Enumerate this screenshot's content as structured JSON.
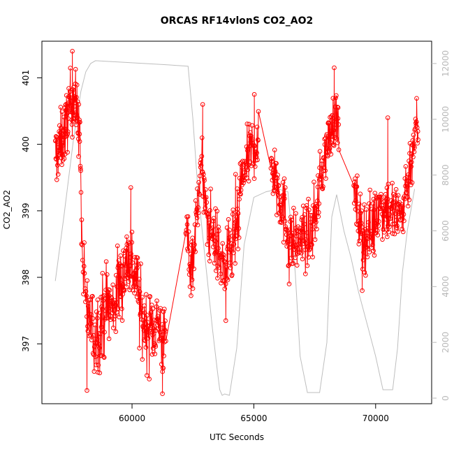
{
  "chart_data": {
    "type": "line",
    "title": "ORCAS RF14vlonS CO2_AO2",
    "xlabel": "UTC Seconds",
    "ylabel": "CO2_AO2",
    "xlim": [
      56300,
      72300
    ],
    "ylim": [
      396.1,
      401.55
    ],
    "x_ticks": [
      60000,
      65000,
      70000
    ],
    "y_ticks": [
      397,
      398,
      399,
      400,
      401
    ],
    "y2_ticks": [
      0,
      2000,
      4000,
      6000,
      8000,
      10000,
      12000
    ],
    "y2lim": [
      -200,
      12800
    ],
    "colors": {
      "primary": "#ff0000",
      "secondary": "#bebebe"
    },
    "grid": false,
    "series": [
      {
        "axis": "right",
        "style": "line",
        "color": "#bebebe",
        "x": [
          56850,
          57200,
          57600,
          57900,
          58100,
          58300,
          58500,
          59500,
          60500,
          61500,
          62300,
          62500,
          62700,
          63000,
          63300,
          63500,
          63600,
          63700,
          63800,
          64000,
          64300,
          64600,
          65000,
          65500,
          66000,
          66400,
          66700,
          66900,
          67200,
          67400,
          67700,
          68000,
          68200,
          68400,
          68700,
          69000,
          69300,
          69700,
          70000,
          70300,
          70500,
          70700,
          70900,
          71100,
          71300,
          71600
        ],
        "y": [
          4200,
          6500,
          9300,
          11000,
          11700,
          12000,
          12100,
          12050,
          12000,
          11950,
          11900,
          10000,
          7500,
          5000,
          2500,
          1000,
          300,
          100,
          150,
          100,
          1800,
          5500,
          7200,
          7400,
          7500,
          7400,
          4500,
          1500,
          200,
          200,
          200,
          2000,
          6500,
          7300,
          6000,
          5000,
          3800,
          2500,
          1500,
          300,
          300,
          300,
          1800,
          4500,
          6000,
          7500
        ]
      },
      {
        "axis": "left",
        "style": "line+points",
        "color": "#ff0000",
        "segments": [
          {
            "x_range": [
              56850,
              57900
            ],
            "anchors": [
              [
                56850,
                399.8
              ],
              [
                57050,
                400.0
              ],
              [
                57250,
                400.2
              ],
              [
                57450,
                400.6
              ],
              [
                57650,
                400.7
              ],
              [
                57850,
                400.2
              ],
              [
                57900,
                399.4
              ]
            ],
            "noise": 0.45,
            "n": 110
          },
          {
            "x_range": [
              57900,
              58400
            ],
            "anchors": [
              [
                57900,
                399.1
              ],
              [
                58000,
                398.0
              ],
              [
                58100,
                397.6
              ],
              [
                58250,
                397.4
              ],
              [
                58400,
                397.2
              ]
            ],
            "noise": 0.55,
            "n": 30
          },
          {
            "x_range": [
              58400,
              59600
            ],
            "anchors": [
              [
                58400,
                397.1
              ],
              [
                58700,
                397.3
              ],
              [
                58950,
                397.6
              ],
              [
                59200,
                397.5
              ],
              [
                59400,
                397.8
              ],
              [
                59600,
                398.0
              ]
            ],
            "noise": 0.6,
            "n": 90
          },
          {
            "x_range": [
              59600,
              60300
            ],
            "anchors": [
              [
                59600,
                398.0
              ],
              [
                59800,
                398.3
              ],
              [
                60000,
                398.2
              ],
              [
                60150,
                398.0
              ],
              [
                60300,
                397.8
              ]
            ],
            "noise": 0.55,
            "n": 55
          },
          {
            "x_range": [
              60300,
              61400
            ],
            "anchors": [
              [
                60300,
                397.5
              ],
              [
                60500,
                397.3
              ],
              [
                60700,
                397.2
              ],
              [
                60900,
                397.3
              ],
              [
                61100,
                397.3
              ],
              [
                61300,
                397.0
              ],
              [
                61400,
                397.0
              ]
            ],
            "noise": 0.55,
            "n": 80
          },
          {
            "x_range": [
              62200,
              63000
            ],
            "anchors": [
              [
                62200,
                398.8
              ],
              [
                62400,
                398.2
              ],
              [
                62600,
                398.6
              ],
              [
                62750,
                399.5
              ],
              [
                62900,
                399.6
              ],
              [
                63000,
                399.2
              ]
            ],
            "noise": 0.5,
            "n": 55
          },
          {
            "x_range": [
              63000,
              64400
            ],
            "anchors": [
              [
                63000,
                398.9
              ],
              [
                63300,
                398.7
              ],
              [
                63600,
                398.3
              ],
              [
                63800,
                398.1
              ],
              [
                64100,
                398.4
              ],
              [
                64400,
                398.8
              ]
            ],
            "noise": 0.5,
            "n": 100
          },
          {
            "x_range": [
              64400,
              65200
            ],
            "anchors": [
              [
                64400,
                399.3
              ],
              [
                64700,
                399.7
              ],
              [
                64900,
                399.9
              ],
              [
                65050,
                400.0
              ],
              [
                65200,
                399.9
              ]
            ],
            "noise": 0.45,
            "n": 60
          },
          {
            "x_range": [
              65700,
              66400
            ],
            "anchors": [
              [
                65700,
                399.8
              ],
              [
                65900,
                399.5
              ],
              [
                66100,
                399.2
              ],
              [
                66300,
                398.9
              ],
              [
                66400,
                398.7
              ]
            ],
            "noise": 0.5,
            "n": 55
          },
          {
            "x_range": [
              66400,
              67700
            ],
            "anchors": [
              [
                66400,
                398.6
              ],
              [
                66700,
                398.5
              ],
              [
                67000,
                398.6
              ],
              [
                67300,
                398.6
              ],
              [
                67500,
                398.9
              ],
              [
                67700,
                399.3
              ]
            ],
            "noise": 0.45,
            "n": 95
          },
          {
            "x_range": [
              67700,
              68500
            ],
            "anchors": [
              [
                67700,
                399.4
              ],
              [
                67900,
                399.8
              ],
              [
                68100,
                400.1
              ],
              [
                68300,
                400.4
              ],
              [
                68500,
                400.3
              ]
            ],
            "noise": 0.4,
            "n": 60
          },
          {
            "x_range": [
              69100,
              70000
            ],
            "anchors": [
              [
                69100,
                399.2
              ],
              [
                69300,
                398.9
              ],
              [
                69500,
                398.6
              ],
              [
                69700,
                398.7
              ],
              [
                70000,
                398.8
              ]
            ],
            "noise": 0.5,
            "n": 65
          },
          {
            "x_range": [
              70000,
              71150
            ],
            "anchors": [
              [
                70000,
                399.0
              ],
              [
                70300,
                399.1
              ],
              [
                70600,
                399.0
              ],
              [
                70900,
                398.9
              ],
              [
                71150,
                399.0
              ]
            ],
            "noise": 0.5,
            "n": 80
          },
          {
            "x_range": [
              71150,
              71750
            ],
            "anchors": [
              [
                71150,
                399.2
              ],
              [
                71350,
                399.5
              ],
              [
                71500,
                399.9
              ],
              [
                71650,
                400.2
              ],
              [
                71750,
                400.3
              ]
            ],
            "noise": 0.45,
            "n": 45
          }
        ],
        "outliers": [
          [
            57550,
            401.4
          ],
          [
            58150,
            396.3
          ],
          [
            61250,
            396.25
          ],
          [
            68300,
            401.15
          ],
          [
            65020,
            400.75
          ],
          [
            62900,
            400.6
          ],
          [
            63850,
            397.35
          ],
          [
            69450,
            397.8
          ],
          [
            70500,
            400.4
          ],
          [
            66450,
            397.9
          ],
          [
            59950,
            399.35
          ],
          [
            64250,
            399.55
          ]
        ]
      }
    ]
  }
}
